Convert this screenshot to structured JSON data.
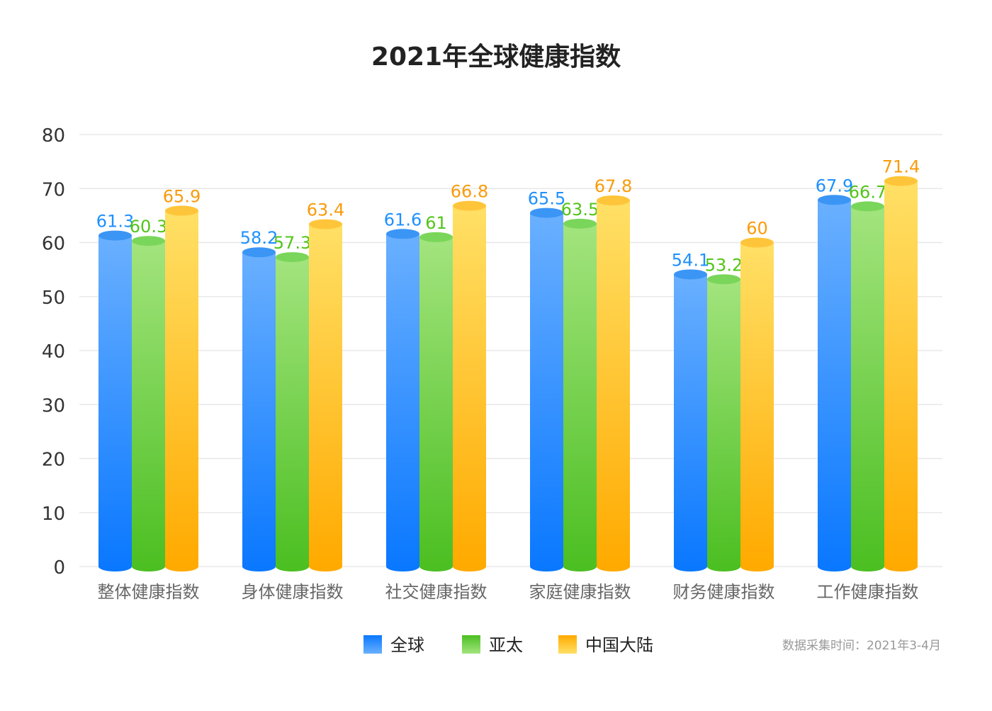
{
  "chart_data": {
    "type": "bar",
    "title": "2021年全球健康指数",
    "categories": [
      "整体健康指数",
      "身体健康指数",
      "社交健康指数",
      "家庭健康指数",
      "财务健康指数",
      "工作健康指数"
    ],
    "series": [
      {
        "name": "全球",
        "values": [
          61.3,
          58.2,
          61.6,
          65.5,
          54.1,
          67.9
        ],
        "color": "#1e90ff",
        "top": "#6ab0ff",
        "bottom": "#0a78ff",
        "cap": "#3b95f5"
      },
      {
        "name": "亚太",
        "values": [
          60.3,
          57.3,
          61,
          63.5,
          53.2,
          66.7
        ],
        "color": "#52c41a",
        "top": "#a3e47e",
        "bottom": "#4cbf22",
        "cap": "#7ad65a"
      },
      {
        "name": "中国大陆",
        "values": [
          65.9,
          63.4,
          66.8,
          67.8,
          60,
          71.4
        ],
        "color": "#fa9b0a",
        "top": "#ffe066",
        "bottom": "#ffaa00",
        "cap": "#ffc53a"
      }
    ],
    "ylim": [
      0,
      80
    ],
    "yticks": [
      "0",
      "10",
      "20",
      "30",
      "40",
      "50",
      "60",
      "70",
      "80"
    ],
    "grid": true,
    "legend": "bottom-center",
    "xlabel": "",
    "ylabel": ""
  },
  "footnote": "数据采集时间：2021年3-4月"
}
